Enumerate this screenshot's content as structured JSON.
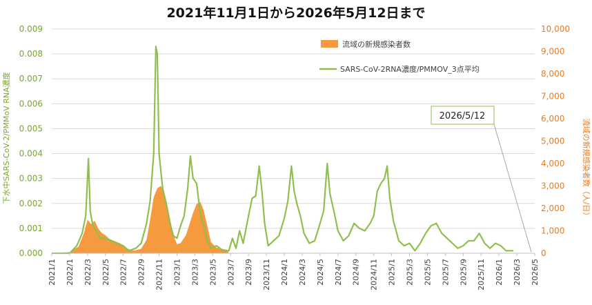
{
  "chart_data": {
    "type": "line",
    "title": "2021年11月1日から2026年5月12日まで",
    "ylabel_left": "下水中SARS-CoV-2/PMMoV RNA濃度",
    "ylabel_right": "流域の新規感染者数（人/日）",
    "y_left_ticks": [
      "0.000",
      "0.001",
      "0.002",
      "0.003",
      "0.004",
      "0.005",
      "0.006",
      "0.007",
      "0.008",
      "0.009"
    ],
    "y_right_ticks": [
      "0",
      "1,000",
      "2,000",
      "3,000",
      "4,000",
      "5,000",
      "6,000",
      "7,000",
      "8,000",
      "9,000",
      "10,000"
    ],
    "ylim_left": [
      0,
      0.009
    ],
    "ylim_right": [
      0,
      10000
    ],
    "x_ticks": [
      "2021/1",
      "2022/1",
      "2022/3",
      "2022/5",
      "2022/7",
      "2022/9",
      "2022/11",
      "2023/1",
      "2023/3",
      "2023/5",
      "2023/7",
      "2023/9",
      "2023/11",
      "2024/1",
      "2024/3",
      "2024/5",
      "2024/7",
      "2024/9",
      "2024/11",
      "2025/1",
      "2025/3",
      "2025/5",
      "2025/7",
      "2025/9",
      "2025/11",
      "2026/1",
      "2026/3",
      "2026/5"
    ],
    "grid": true,
    "legend_position": "top-center",
    "colors": {
      "cases": "#f59a3f",
      "rna": "#8fbf4d",
      "left_axis": "#7aa631",
      "right_axis": "#e87b1f"
    },
    "callout": "2026/5/12",
    "series": [
      {
        "name": "流域の新規感染者数",
        "axis": "right",
        "type": "area",
        "points": [
          [
            0.0,
            0
          ],
          [
            1.0,
            50
          ],
          [
            1.5,
            300
          ],
          [
            1.8,
            900
          ],
          [
            2.0,
            1500
          ],
          [
            2.2,
            1300
          ],
          [
            2.4,
            1450
          ],
          [
            2.6,
            1100
          ],
          [
            2.8,
            900
          ],
          [
            3.0,
            800
          ],
          [
            3.2,
            650
          ],
          [
            3.5,
            550
          ],
          [
            3.8,
            450
          ],
          [
            4.0,
            350
          ],
          [
            4.3,
            180
          ],
          [
            4.6,
            120
          ],
          [
            5.0,
            200
          ],
          [
            5.3,
            600
          ],
          [
            5.5,
            1500
          ],
          [
            5.7,
            2500
          ],
          [
            5.9,
            2900
          ],
          [
            6.1,
            3000
          ],
          [
            6.3,
            2700
          ],
          [
            6.5,
            2000
          ],
          [
            6.7,
            1200
          ],
          [
            6.9,
            600
          ],
          [
            7.0,
            400
          ],
          [
            7.2,
            450
          ],
          [
            7.5,
            800
          ],
          [
            7.7,
            1300
          ],
          [
            7.9,
            1800
          ],
          [
            8.1,
            2200
          ],
          [
            8.3,
            2300
          ],
          [
            8.5,
            1900
          ],
          [
            8.7,
            1200
          ],
          [
            8.9,
            500
          ],
          [
            9.2,
            250
          ],
          [
            9.5,
            200
          ],
          [
            9.8,
            150
          ],
          [
            9.9,
            0
          ]
        ]
      },
      {
        "name": "SARS-CoV-2RNA濃度/PMMOV_3点平均",
        "axis": "left",
        "type": "line",
        "points": [
          [
            0.0,
            0.0
          ],
          [
            1.0,
            0.0
          ],
          [
            1.4,
            0.0003
          ],
          [
            1.7,
            0.0008
          ],
          [
            1.9,
            0.0015
          ],
          [
            2.05,
            0.0038
          ],
          [
            2.15,
            0.0017
          ],
          [
            2.3,
            0.0011
          ],
          [
            2.5,
            0.0009
          ],
          [
            2.7,
            0.0006
          ],
          [
            3.0,
            0.0006
          ],
          [
            3.3,
            0.0005
          ],
          [
            3.6,
            0.0004
          ],
          [
            4.0,
            0.0003
          ],
          [
            4.3,
            0.0001
          ],
          [
            4.7,
            0.0002
          ],
          [
            5.0,
            0.0004
          ],
          [
            5.3,
            0.0012
          ],
          [
            5.5,
            0.0021
          ],
          [
            5.7,
            0.004
          ],
          [
            5.82,
            0.0083
          ],
          [
            5.9,
            0.008
          ],
          [
            6.0,
            0.004
          ],
          [
            6.2,
            0.0026
          ],
          [
            6.4,
            0.002
          ],
          [
            6.6,
            0.0012
          ],
          [
            6.8,
            0.0007
          ],
          [
            7.0,
            0.0006
          ],
          [
            7.2,
            0.0011
          ],
          [
            7.4,
            0.0015
          ],
          [
            7.6,
            0.0026
          ],
          [
            7.75,
            0.0039
          ],
          [
            7.9,
            0.003
          ],
          [
            8.1,
            0.0028
          ],
          [
            8.3,
            0.0016
          ],
          [
            8.5,
            0.0011
          ],
          [
            8.7,
            0.0005
          ],
          [
            8.9,
            0.0002
          ],
          [
            9.2,
            0.0003
          ],
          [
            9.6,
            0.0001
          ],
          [
            9.9,
            0.0001
          ],
          [
            10.1,
            0.0006
          ],
          [
            10.3,
            0.0002
          ],
          [
            10.5,
            0.0009
          ],
          [
            10.7,
            0.0004
          ],
          [
            11.0,
            0.0015
          ],
          [
            11.2,
            0.0022
          ],
          [
            11.4,
            0.0023
          ],
          [
            11.6,
            0.0035
          ],
          [
            11.75,
            0.0025
          ],
          [
            11.9,
            0.0012
          ],
          [
            12.1,
            0.0003
          ],
          [
            12.4,
            0.0005
          ],
          [
            12.7,
            0.0007
          ],
          [
            13.0,
            0.0014
          ],
          [
            13.2,
            0.0021
          ],
          [
            13.4,
            0.0035
          ],
          [
            13.55,
            0.0025
          ],
          [
            13.7,
            0.002
          ],
          [
            13.9,
            0.0015
          ],
          [
            14.1,
            0.0008
          ],
          [
            14.4,
            0.0004
          ],
          [
            14.7,
            0.0005
          ],
          [
            15.0,
            0.0012
          ],
          [
            15.2,
            0.0017
          ],
          [
            15.4,
            0.0036
          ],
          [
            15.55,
            0.0024
          ],
          [
            15.8,
            0.0016
          ],
          [
            16.0,
            0.0009
          ],
          [
            16.3,
            0.0005
          ],
          [
            16.6,
            0.0007
          ],
          [
            16.9,
            0.0012
          ],
          [
            17.2,
            0.001
          ],
          [
            17.5,
            0.0009
          ],
          [
            17.8,
            0.0012
          ],
          [
            18.0,
            0.0015
          ],
          [
            18.2,
            0.0025
          ],
          [
            18.4,
            0.0028
          ],
          [
            18.6,
            0.003
          ],
          [
            18.75,
            0.0035
          ],
          [
            18.9,
            0.0022
          ],
          [
            19.1,
            0.0013
          ],
          [
            19.4,
            0.0005
          ],
          [
            19.7,
            0.0003
          ],
          [
            20.0,
            0.0004
          ],
          [
            20.3,
            0.0001
          ],
          [
            20.6,
            0.0004
          ],
          [
            20.9,
            0.0008
          ],
          [
            21.2,
            0.0011
          ],
          [
            21.5,
            0.0012
          ],
          [
            21.8,
            0.0008
          ],
          [
            22.1,
            0.0006
          ],
          [
            22.4,
            0.0004
          ],
          [
            22.7,
            0.0002
          ],
          [
            23.0,
            0.0003
          ],
          [
            23.3,
            0.0005
          ],
          [
            23.6,
            0.0005
          ],
          [
            23.9,
            0.0008
          ],
          [
            24.2,
            0.0004
          ],
          [
            24.5,
            0.0002
          ],
          [
            24.8,
            0.0004
          ],
          [
            25.1,
            0.0003
          ],
          [
            25.4,
            0.0001
          ],
          [
            25.8,
            0.0001
          ]
        ]
      }
    ]
  }
}
